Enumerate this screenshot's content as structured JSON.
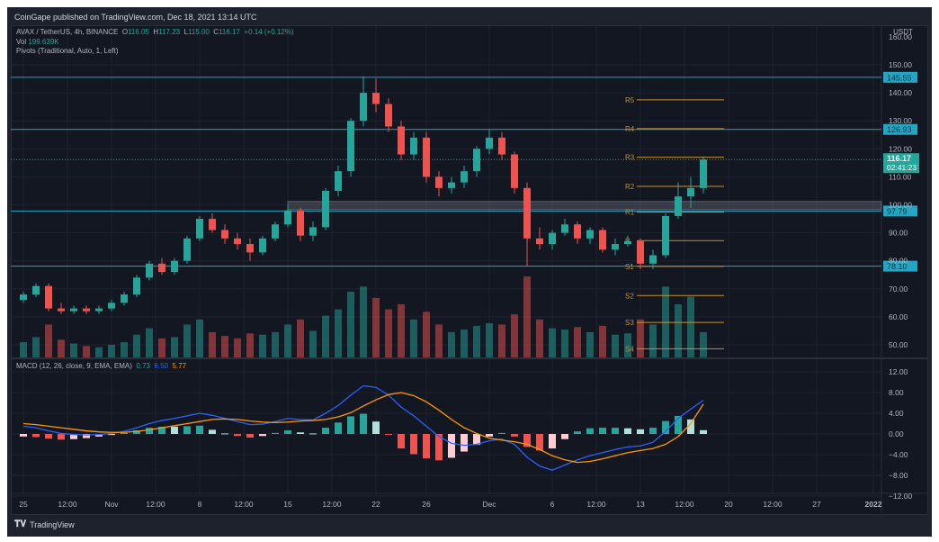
{
  "publish_line": "CoinGape published on TradingView.com, Dec 18, 2021 13:14 UTC",
  "legend": {
    "symbol": "AVAX / TetherUS, 4h, BINANCE",
    "o_label": "O",
    "o": "116.05",
    "h_label": "H",
    "h": "117.23",
    "l_label": "L",
    "l": "115.00",
    "c_label": "C",
    "c": "116.17",
    "change": "+0.14 (+0.12%)",
    "vol_label": "Vol",
    "vol": "199.639K",
    "pivots": "Pivots (Traditional, Auto, 1, Left)"
  },
  "macd_legend": {
    "label": "MACD (12, 26, close, 9, EMA, EMA)",
    "hist": "0.73",
    "macd": "6.50",
    "signal": "5.77"
  },
  "footer": {
    "brand": "TradingView",
    "logo_icon": "tradingview-logo-icon"
  },
  "colors": {
    "up": "#26a69a",
    "down": "#ef5350",
    "level": "#22a6c3",
    "pivot": "#c8902f",
    "macd": "#2962ff",
    "signal": "#ff9800",
    "price_tag": "#26a69a"
  },
  "chart_data": {
    "type": "candlestick",
    "currency": "USDT",
    "price_axis_ticks": [
      "150.00",
      "140.00",
      "130.00",
      "120.00",
      "110.00",
      "100.00",
      "90.00",
      "80.00",
      "70.00",
      "60.00",
      "50.00"
    ],
    "price_axis_top_partial": "160.00",
    "ylim": [
      45,
      160
    ],
    "macd_axis_ticks": [
      "12.00",
      "8.00",
      "4.00",
      "0.00",
      "−4.00",
      "−8.00",
      "−12.00"
    ],
    "time_axis_ticks": [
      {
        "label": "25",
        "day": 0
      },
      {
        "label": "12:00",
        "day": 3.5
      },
      {
        "label": "Nov",
        "day": 7
      },
      {
        "label": "12:00",
        "day": 10.5
      },
      {
        "label": "8",
        "day": 14
      },
      {
        "label": "12:00",
        "day": 17.5
      },
      {
        "label": "15",
        "day": 21
      },
      {
        "label": "12:00",
        "day": 24.5
      },
      {
        "label": "22",
        "day": 28
      },
      {
        "label": "26",
        "day": 32
      },
      {
        "label": "Dec",
        "day": 37
      },
      {
        "label": "6",
        "day": 42
      },
      {
        "label": "12:00",
        "day": 45.5
      },
      {
        "label": "13",
        "day": 49
      },
      {
        "label": "12:00",
        "day": 52.5
      },
      {
        "label": "20",
        "day": 56
      },
      {
        "label": "12:00",
        "day": 59.5
      },
      {
        "label": "27",
        "day": 63
      },
      {
        "label": "2022",
        "day": 67.5
      }
    ],
    "candles_ohlc": [
      [
        66,
        69,
        65,
        68
      ],
      [
        68,
        72,
        67,
        71
      ],
      [
        71,
        72,
        62,
        63
      ],
      [
        63,
        65,
        61,
        62
      ],
      [
        62,
        64,
        61,
        63
      ],
      [
        63,
        64,
        61,
        62
      ],
      [
        62,
        64,
        61,
        63
      ],
      [
        63,
        66,
        62,
        65
      ],
      [
        65,
        69,
        64,
        68
      ],
      [
        68,
        75,
        67,
        74
      ],
      [
        74,
        80,
        73,
        79
      ],
      [
        79,
        81,
        75,
        76
      ],
      [
        76,
        81,
        75,
        80
      ],
      [
        80,
        89,
        79,
        88
      ],
      [
        88,
        96,
        87,
        95
      ],
      [
        95,
        97,
        90,
        91
      ],
      [
        91,
        93,
        86,
        88
      ],
      [
        88,
        90,
        84,
        86
      ],
      [
        86,
        88,
        80,
        83
      ],
      [
        83,
        89,
        82,
        88
      ],
      [
        88,
        94,
        87,
        93
      ],
      [
        93,
        100,
        92,
        98
      ],
      [
        98,
        99,
        87,
        89
      ],
      [
        89,
        94,
        87,
        92
      ],
      [
        92,
        106,
        91,
        105
      ],
      [
        105,
        114,
        103,
        112
      ],
      [
        112,
        131,
        110,
        130
      ],
      [
        130,
        146,
        128,
        140
      ],
      [
        140,
        145,
        133,
        136
      ],
      [
        136,
        138,
        126,
        128
      ],
      [
        128,
        130,
        116,
        118
      ],
      [
        118,
        126,
        116,
        124
      ],
      [
        124,
        126,
        108,
        110
      ],
      [
        110,
        112,
        103,
        106
      ],
      [
        106,
        110,
        104,
        108
      ],
      [
        108,
        114,
        106,
        112
      ],
      [
        112,
        121,
        110,
        120
      ],
      [
        120,
        127,
        118,
        124
      ],
      [
        124,
        126,
        116,
        118
      ],
      [
        118,
        119,
        104,
        106
      ],
      [
        106,
        108,
        78,
        88
      ],
      [
        88,
        92,
        84,
        86
      ],
      [
        86,
        91,
        84,
        90
      ],
      [
        90,
        95,
        89,
        93
      ],
      [
        93,
        94,
        86,
        88
      ],
      [
        88,
        92,
        86,
        91
      ],
      [
        91,
        92,
        83,
        84
      ],
      [
        84,
        88,
        82,
        86
      ],
      [
        86,
        89,
        85,
        87
      ],
      [
        87,
        88,
        77,
        79
      ],
      [
        79,
        84,
        77,
        82
      ],
      [
        82,
        97,
        81,
        96
      ],
      [
        96,
        108,
        95,
        103
      ],
      [
        103,
        110,
        99,
        106
      ],
      [
        106,
        117.23,
        104,
        116.17
      ]
    ],
    "volume_k": [
      120,
      160,
      260,
      140,
      110,
      90,
      80,
      100,
      120,
      180,
      230,
      150,
      160,
      260,
      300,
      200,
      170,
      150,
      190,
      180,
      200,
      260,
      300,
      210,
      330,
      380,
      520,
      560,
      470,
      380,
      420,
      300,
      360,
      260,
      200,
      220,
      250,
      270,
      260,
      340,
      640,
      300,
      230,
      220,
      240,
      200,
      250,
      180,
      190,
      300,
      260,
      560,
      420,
      480,
      199.639
    ],
    "macd": [
      1.5,
      1.2,
      0.6,
      0.1,
      -0.1,
      -0.2,
      -0.1,
      0.1,
      0.5,
      1.2,
      2.0,
      2.6,
      3.0,
      3.5,
      4.0,
      3.6,
      3.0,
      2.4,
      1.8,
      1.9,
      2.4,
      3.0,
      2.8,
      2.7,
      4.0,
      5.5,
      7.5,
      9.3,
      9.0,
      7.5,
      5.2,
      3.5,
      1.5,
      -0.5,
      -1.8,
      -2.2,
      -2.0,
      -1.3,
      -1.0,
      -2.0,
      -4.5,
      -6.2,
      -7.0,
      -6.0,
      -5.0,
      -4.2,
      -3.6,
      -3.0,
      -2.5,
      -2.3,
      -1.6,
      0.5,
      3.0,
      4.8,
      6.5
    ],
    "signal": [
      2.0,
      1.8,
      1.5,
      1.2,
      0.9,
      0.6,
      0.4,
      0.3,
      0.3,
      0.5,
      0.8,
      1.2,
      1.6,
      2.0,
      2.4,
      2.8,
      2.9,
      2.8,
      2.5,
      2.3,
      2.2,
      2.3,
      2.5,
      2.6,
      2.8,
      3.3,
      4.1,
      5.4,
      6.6,
      7.6,
      8.0,
      7.4,
      6.2,
      4.6,
      2.8,
      1.2,
      0.1,
      -0.8,
      -1.2,
      -1.5,
      -2.0,
      -3.0,
      -4.2,
      -5.0,
      -5.5,
      -5.3,
      -4.8,
      -4.2,
      -3.6,
      -3.2,
      -2.8,
      -2.0,
      -0.5,
      2.0,
      5.77
    ],
    "horizontal_levels": [
      {
        "value": 145.55,
        "label": "145.55"
      },
      {
        "value": 126.93,
        "label": "126.93"
      },
      {
        "value": 97.79,
        "label": "97.79"
      },
      {
        "value": 78.1,
        "label": "78.10"
      }
    ],
    "zone": {
      "low": 98.3,
      "high": 101.2
    },
    "pivots": [
      {
        "label": "R5",
        "value": 137.5
      },
      {
        "label": "R4",
        "value": 127.2
      },
      {
        "label": "R3",
        "value": 117.0
      },
      {
        "label": "R2",
        "value": 106.6
      },
      {
        "label": "R1",
        "value": 97.4
      },
      {
        "label": "P",
        "value": 87.2
      },
      {
        "label": "S1",
        "value": 78.0
      },
      {
        "label": "S2",
        "value": 67.6
      },
      {
        "label": "S3",
        "value": 58.0
      },
      {
        "label": "S4",
        "value": 48.6
      }
    ],
    "last_price": {
      "value": 116.17,
      "label": "116.17",
      "countdown": "02:41:23"
    }
  }
}
